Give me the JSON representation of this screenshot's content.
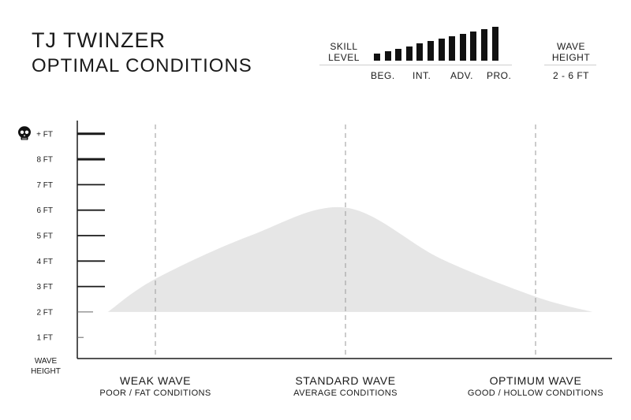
{
  "header": {
    "title_line1": "TJ TWINZER",
    "title_line2": "OPTIMAL CONDITIONS"
  },
  "skill": {
    "label_line1": "SKILL",
    "label_line2": "LEVEL",
    "bar_levels": [
      3,
      4,
      5,
      6,
      7,
      8,
      9,
      10,
      11,
      12,
      13,
      14
    ],
    "ticks": [
      "BEG.",
      "INT.",
      "ADV.",
      "PRO."
    ]
  },
  "wave_height_box": {
    "label_line1": "WAVE",
    "label_line2": "HEIGHT",
    "range": "2 - 6 FT"
  },
  "chart_data": {
    "type": "area",
    "ylabel": [
      "WAVE",
      "HEIGHT"
    ],
    "y_ticks": [
      {
        "value": 1,
        "label": "1 FT"
      },
      {
        "value": 2,
        "label": "2 FT"
      },
      {
        "value": 3,
        "label": "3 FT"
      },
      {
        "value": 4,
        "label": "4 FT"
      },
      {
        "value": 5,
        "label": "5 FT"
      },
      {
        "value": 6,
        "label": "6 FT"
      },
      {
        "value": 7,
        "label": "7 FT"
      },
      {
        "value": 8,
        "label": "8 FT"
      },
      {
        "value": 9,
        "label": "+ FT",
        "icon": "skull-icon"
      }
    ],
    "ylim": [
      0,
      9
    ],
    "categories": [
      {
        "name": "WEAK WAVE",
        "sub": "POOR / FAT CONDITIONS"
      },
      {
        "name": "STANDARD WAVE",
        "sub": "AVERAGE CONDITIONS"
      },
      {
        "name": "OPTIMUM WAVE",
        "sub": "GOOD / HOLLOW CONDITIONS"
      }
    ],
    "xlim": [
      -0.35,
      2.3
    ],
    "area": {
      "baseline": 2,
      "points": [
        {
          "x": -0.25,
          "y": 2.0
        },
        {
          "x": 0.0,
          "y": 3.3
        },
        {
          "x": 0.5,
          "y": 5.0
        },
        {
          "x": 1.0,
          "y": 6.1
        },
        {
          "x": 1.5,
          "y": 4.1
        },
        {
          "x": 2.0,
          "y": 2.6
        },
        {
          "x": 2.3,
          "y": 2.0
        }
      ]
    },
    "colors": {
      "area": "#e6e6e6",
      "axis": "#1a1a1a",
      "guide": "#9a9a9a"
    }
  }
}
